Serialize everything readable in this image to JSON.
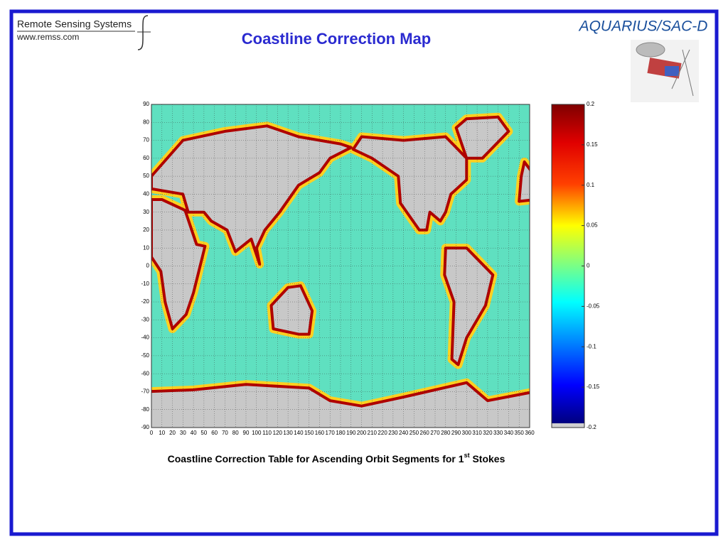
{
  "header": {
    "logo_name": "Remote Sensing Systems",
    "logo_url": "www.remss.com",
    "title": "Coastline Correction Map",
    "brand": "AQUARIUS/SAC-D"
  },
  "figure": {
    "yticks": [
      90,
      80,
      70,
      60,
      50,
      40,
      30,
      20,
      10,
      0,
      -10,
      -20,
      -30,
      -40,
      -50,
      -60,
      -70,
      -80,
      -90
    ],
    "xticks": [
      0,
      10,
      20,
      30,
      40,
      50,
      60,
      70,
      80,
      90,
      100,
      110,
      120,
      130,
      140,
      150,
      160,
      170,
      180,
      190,
      200,
      210,
      220,
      230,
      240,
      250,
      260,
      270,
      280,
      290,
      300,
      310,
      320,
      330,
      340,
      350,
      360
    ],
    "colorbar_ticks": [
      0.2,
      0.15,
      0.1,
      0.05,
      0,
      -0.05,
      -0.1,
      -0.15,
      -0.2
    ]
  },
  "caption": {
    "before": "Coastline Correction Table for Ascending Orbit Segments for 1",
    "superscript": "st",
    "after": " Stokes"
  }
}
